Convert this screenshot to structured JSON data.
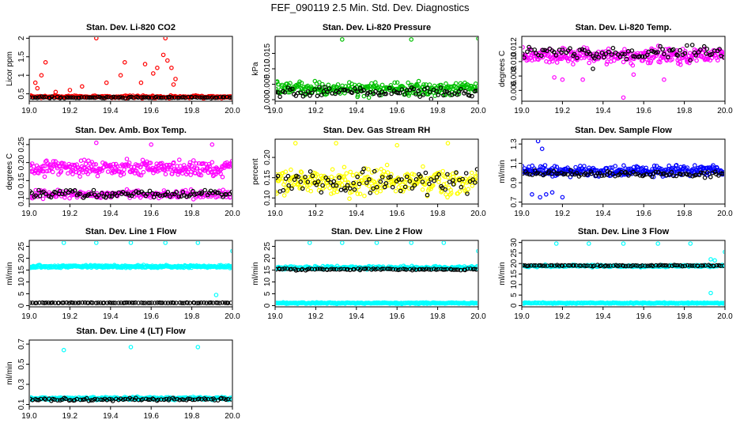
{
  "figure_title": "FEF_090119  2.5 Min. Std. Dev. Diagnostics",
  "colors": {
    "red": "#ff0000",
    "green": "#00c000",
    "magenta": "#ff00ff",
    "yellow": "#ffff00",
    "blue": "#0000ff",
    "cyan": "#00ffff",
    "black": "#000000"
  },
  "chart_data": [
    {
      "id": "co2",
      "type": "scatter",
      "title": "Stan. Dev. Li-820 CO2",
      "xlabel": "",
      "ylabel": "Licor ppm",
      "xlim": [
        19.0,
        20.0
      ],
      "xticks": [
        "19.0",
        "19.2",
        "19.4",
        "19.6",
        "19.8",
        "20.0"
      ],
      "ylim": [
        0.3,
        2.05
      ],
      "yticks": [
        0.5,
        1.0,
        1.5,
        2.0
      ],
      "ytick_labels": [
        "0.5",
        "1",
        "1.5",
        "2"
      ],
      "series": [
        {
          "name": "main",
          "color": "red",
          "n": 240,
          "base": 0.42,
          "spread": 0.05,
          "outliers": [
            [
              19.03,
              0.8
            ],
            [
              19.04,
              0.65
            ],
            [
              19.06,
              1.0
            ],
            [
              19.08,
              1.35
            ],
            [
              19.13,
              0.55
            ],
            [
              19.2,
              0.6
            ],
            [
              19.26,
              0.7
            ],
            [
              19.33,
              2.0
            ],
            [
              19.38,
              0.8
            ],
            [
              19.45,
              1.0
            ],
            [
              19.47,
              1.35
            ],
            [
              19.55,
              0.8
            ],
            [
              19.57,
              1.3
            ],
            [
              19.61,
              1.05
            ],
            [
              19.63,
              1.2
            ],
            [
              19.66,
              1.55
            ],
            [
              19.67,
              2.0
            ],
            [
              19.68,
              1.4
            ],
            [
              19.7,
              1.2
            ],
            [
              19.71,
              0.75
            ],
            [
              19.72,
              0.9
            ]
          ]
        },
        {
          "name": "reference",
          "color": "black",
          "n": 90,
          "base": 0.4,
          "spread": 0.03,
          "outliers": []
        }
      ]
    },
    {
      "id": "pressure",
      "type": "scatter",
      "title": "Stan. Dev. Li-820 Pressure",
      "xlabel": "",
      "ylabel": "kPa",
      "xlim": [
        19.0,
        20.0
      ],
      "xticks": [
        "19.0",
        "19.2",
        "19.4",
        "19.6",
        "19.8",
        "20.0"
      ],
      "ylim": [
        -0.0005,
        0.0205
      ],
      "yticks": [
        0.0,
        0.005,
        0.01,
        0.015
      ],
      "ytick_labels": [
        "0.000",
        "0.005",
        "0.010",
        "0.015"
      ],
      "series": [
        {
          "name": "main",
          "color": "green",
          "n": 300,
          "base": 0.0035,
          "spread": 0.0032,
          "outliers": [
            [
              19.33,
              0.0195
            ],
            [
              19.67,
              0.0195
            ],
            [
              20.0,
              0.0198
            ]
          ]
        },
        {
          "name": "reference",
          "color": "black",
          "n": 90,
          "base": 0.0025,
          "spread": 0.0025,
          "outliers": []
        }
      ]
    },
    {
      "id": "temp",
      "type": "scatter",
      "title": "Stan. Dev. Li-820 Temp.",
      "xlabel": "",
      "ylabel": "degrees C",
      "xlim": [
        19.0,
        20.0
      ],
      "xticks": [
        "19.0",
        "19.2",
        "19.4",
        "19.6",
        "19.8",
        "20.0"
      ],
      "ylim": [
        0.0045,
        0.0135
      ],
      "yticks": [
        0.006,
        0.008,
        0.01,
        0.012
      ],
      "ytick_labels": [
        "0.006",
        "0.008",
        "0.010",
        "0.012"
      ],
      "series": [
        {
          "name": "main",
          "color": "magenta",
          "n": 300,
          "base": 0.0108,
          "spread": 0.0015,
          "outliers": [
            [
              19.16,
              0.0078
            ],
            [
              19.2,
              0.0075
            ],
            [
              19.3,
              0.0075
            ],
            [
              19.5,
              0.005
            ],
            [
              19.55,
              0.0082
            ],
            [
              19.7,
              0.0075
            ]
          ]
        },
        {
          "name": "reference",
          "color": "black",
          "n": 90,
          "base": 0.0113,
          "spread": 0.0013,
          "outliers": [
            [
              19.35,
              0.009
            ]
          ]
        }
      ]
    },
    {
      "id": "boxtemp",
      "type": "scatter",
      "title": "Stan. Dev. Amb. Box Temp.",
      "xlabel": "",
      "ylabel": "degrees C",
      "xlim": [
        19.0,
        20.0
      ],
      "xticks": [
        "19.0",
        "19.2",
        "19.4",
        "19.6",
        "19.8",
        "20.0"
      ],
      "ylim": [
        0.085,
        0.265
      ],
      "yticks": [
        0.1,
        0.15,
        0.2,
        0.25
      ],
      "ytick_labels": [
        "0.10",
        "0.15",
        "0.20",
        "0.25"
      ],
      "series": [
        {
          "name": "main-upper",
          "color": "magenta",
          "n": 300,
          "base": 0.185,
          "spread": 0.03,
          "outliers": [
            [
              19.33,
              0.255
            ],
            [
              19.6,
              0.25
            ],
            [
              19.9,
              0.25
            ]
          ]
        },
        {
          "name": "main-lower",
          "color": "magenta",
          "n": 180,
          "base": 0.112,
          "spread": 0.018,
          "outliers": []
        },
        {
          "name": "reference",
          "color": "black",
          "n": 100,
          "base": 0.113,
          "spread": 0.015,
          "outliers": []
        }
      ]
    },
    {
      "id": "rh",
      "type": "scatter",
      "title": "Stan. Dev. Gas Stream RH",
      "xlabel": "",
      "ylabel": "percent",
      "xlim": [
        19.0,
        20.0
      ],
      "xticks": [
        "19.0",
        "19.2",
        "19.4",
        "19.6",
        "19.8",
        "20.0"
      ],
      "ylim": [
        0.085,
        0.245
      ],
      "yticks": [
        0.1,
        0.15,
        0.2
      ],
      "ytick_labels": [
        "0.10",
        "0.15",
        "0.20"
      ],
      "series": [
        {
          "name": "main",
          "color": "yellow",
          "n": 300,
          "base": 0.14,
          "spread": 0.045,
          "outliers": [
            [
              19.1,
              0.235
            ],
            [
              19.3,
              0.235
            ],
            [
              19.6,
              0.23
            ],
            [
              19.85,
              0.235
            ]
          ]
        },
        {
          "name": "reference",
          "color": "black",
          "n": 90,
          "base": 0.14,
          "spread": 0.04,
          "outliers": []
        }
      ]
    },
    {
      "id": "sampleflow",
      "type": "scatter",
      "title": "Stan. Dev. Sample Flow",
      "xlabel": "",
      "ylabel": "ml/min",
      "xlim": [
        19.0,
        20.0
      ],
      "xticks": [
        "19.0",
        "19.2",
        "19.4",
        "19.6",
        "19.8",
        "20.0"
      ],
      "ylim": [
        0.68,
        1.35
      ],
      "yticks": [
        0.7,
        0.9,
        1.1,
        1.3
      ],
      "ytick_labels": [
        "0.7",
        "0.9",
        "1.1",
        "1.3"
      ],
      "series": [
        {
          "name": "main",
          "color": "blue",
          "n": 300,
          "base": 1.02,
          "spread": 0.08,
          "outliers": [
            [
              19.08,
              1.33
            ],
            [
              19.05,
              0.78
            ],
            [
              19.09,
              0.75
            ],
            [
              19.12,
              0.78
            ],
            [
              19.15,
              0.8
            ],
            [
              19.2,
              0.75
            ],
            [
              19.1,
              1.25
            ]
          ]
        },
        {
          "name": "reference",
          "color": "black",
          "n": 90,
          "base": 0.99,
          "spread": 0.05,
          "outliers": []
        }
      ]
    },
    {
      "id": "line1",
      "type": "scatter",
      "title": "Stan. Dev. Line 1 Flow",
      "xlabel": "",
      "ylabel": "ml/min",
      "xlim": [
        19.0,
        20.0
      ],
      "xticks": [
        "19.0",
        "19.2",
        "19.4",
        "19.6",
        "19.8",
        "20.0"
      ],
      "ylim": [
        -0.5,
        27.5
      ],
      "yticks": [
        0,
        5,
        10,
        15,
        20,
        25
      ],
      "ytick_labels": [
        "0",
        "5",
        "10",
        "15",
        "20",
        "25"
      ],
      "series": [
        {
          "name": "main",
          "color": "cyan",
          "n": 300,
          "base": 16.5,
          "spread": 0.8,
          "outliers": [
            [
              19.17,
              26.5
            ],
            [
              19.33,
              26.5
            ],
            [
              19.5,
              26.5
            ],
            [
              19.67,
              26.5
            ],
            [
              19.83,
              26.5
            ],
            [
              20.0,
              23.0
            ],
            [
              19.92,
              4.5
            ]
          ]
        },
        {
          "name": "reference",
          "color": "black",
          "n": 90,
          "base": 1.2,
          "spread": 0.15,
          "outliers": []
        }
      ]
    },
    {
      "id": "line2",
      "type": "scatter",
      "title": "Stan. Dev. Line 2 Flow",
      "xlabel": "",
      "ylabel": "ml/min",
      "xlim": [
        19.0,
        20.0
      ],
      "xticks": [
        "19.0",
        "19.2",
        "19.4",
        "19.6",
        "19.8",
        "20.0"
      ],
      "ylim": [
        -0.5,
        27.5
      ],
      "yticks": [
        0,
        5,
        10,
        15,
        20,
        25
      ],
      "ytick_labels": [
        "0",
        "5",
        "10",
        "15",
        "20",
        "25"
      ],
      "series": [
        {
          "name": "main-upper",
          "color": "cyan",
          "n": 260,
          "base": 16.0,
          "spread": 1.0,
          "outliers": [
            [
              19.17,
              26.5
            ],
            [
              19.33,
              26.5
            ],
            [
              19.5,
              26.5
            ],
            [
              19.67,
              26.5
            ],
            [
              19.83,
              26.5
            ],
            [
              20.0,
              23.0
            ]
          ]
        },
        {
          "name": "main-lower",
          "color": "cyan",
          "n": 260,
          "base": 1.1,
          "spread": 0.4,
          "outliers": []
        },
        {
          "name": "reference",
          "color": "black",
          "n": 90,
          "base": 15.3,
          "spread": 0.5,
          "outliers": []
        }
      ]
    },
    {
      "id": "line3",
      "type": "scatter",
      "title": "Stan. Dev. Line 3 Flow",
      "xlabel": "",
      "ylabel": "ml/min",
      "xlim": [
        19.0,
        20.0
      ],
      "xticks": [
        "19.0",
        "19.2",
        "19.4",
        "19.6",
        "19.8",
        "20.0"
      ],
      "ylim": [
        -0.6,
        31.0
      ],
      "yticks": [
        0,
        5,
        10,
        15,
        20,
        25,
        30
      ],
      "ytick_labels": [
        "0",
        "5",
        "10",
        "15",
        "20",
        "25",
        "30"
      ],
      "series": [
        {
          "name": "main-upper",
          "color": "cyan",
          "n": 240,
          "base": 18.8,
          "spread": 0.7,
          "outliers": [
            [
              19.17,
              29.5
            ],
            [
              19.33,
              29.5
            ],
            [
              19.5,
              29.5
            ],
            [
              19.67,
              29.5
            ],
            [
              19.83,
              29.5
            ],
            [
              20.0,
              25.5
            ],
            [
              19.93,
              6.0
            ],
            [
              19.93,
              22.0
            ],
            [
              19.95,
              21.5
            ]
          ]
        },
        {
          "name": "main-lower",
          "color": "cyan",
          "n": 240,
          "base": 1.2,
          "spread": 0.4,
          "outliers": []
        },
        {
          "name": "reference",
          "color": "black",
          "n": 90,
          "base": 19.0,
          "spread": 0.4,
          "outliers": []
        }
      ]
    },
    {
      "id": "line4",
      "type": "scatter",
      "title": "Stan. Dev. Line 4 (LT) Flow",
      "xlabel": "",
      "ylabel": "ml/min",
      "xlim": [
        19.0,
        20.0
      ],
      "xticks": [
        "19.0",
        "19.2",
        "19.4",
        "19.6",
        "19.8",
        "20.0"
      ],
      "ylim": [
        0.08,
        0.74
      ],
      "yticks": [
        0.1,
        0.3,
        0.5,
        0.7
      ],
      "ytick_labels": [
        "0.1",
        "0.3",
        "0.5",
        "0.7"
      ],
      "series": [
        {
          "name": "main",
          "color": "cyan",
          "n": 300,
          "base": 0.16,
          "spread": 0.02,
          "outliers": [
            [
              19.17,
              0.64
            ],
            [
              19.5,
              0.67
            ],
            [
              19.83,
              0.67
            ]
          ]
        },
        {
          "name": "reference",
          "color": "black",
          "n": 90,
          "base": 0.15,
          "spread": 0.02,
          "outliers": []
        }
      ]
    }
  ]
}
